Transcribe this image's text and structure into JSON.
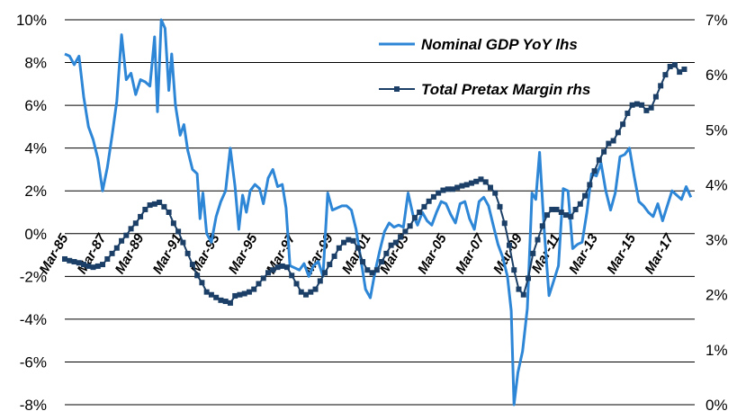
{
  "chart_data": {
    "type": "line",
    "title": "",
    "xlabel": "",
    "ylabel_left": "",
    "ylabel_right": "",
    "x_range": [
      1985.2,
      2018.5
    ],
    "x_ticks": [
      {
        "label": "Mar-85",
        "x": 1985.2
      },
      {
        "label": "Mar-87",
        "x": 1987.2
      },
      {
        "label": "Mar-89",
        "x": 1989.2
      },
      {
        "label": "Mar-91",
        "x": 1991.2
      },
      {
        "label": "Mar-93",
        "x": 1993.2
      },
      {
        "label": "Mar-95",
        "x": 1995.2
      },
      {
        "label": "Mar-97",
        "x": 1997.2
      },
      {
        "label": "Mar-99",
        "x": 1999.2
      },
      {
        "label": "Mar-01",
        "x": 2001.2
      },
      {
        "label": "Mar-03",
        "x": 2003.2
      },
      {
        "label": "Mar-05",
        "x": 2005.2
      },
      {
        "label": "Mar-07",
        "x": 2007.2
      },
      {
        "label": "Mar-09",
        "x": 2009.2
      },
      {
        "label": "Mar-11",
        "x": 2011.2
      },
      {
        "label": "Mar-13",
        "x": 2013.2
      },
      {
        "label": "Mar-15",
        "x": 2015.2
      },
      {
        "label": "Mar-17",
        "x": 2017.2
      }
    ],
    "y_left": {
      "range": [
        -8,
        10
      ],
      "ticks": [
        -8,
        -6,
        -4,
        -2,
        0,
        2,
        4,
        6,
        8,
        10
      ],
      "tick_labels": [
        "-8%",
        "-6%",
        "-4%",
        "-2%",
        "0%",
        "2%",
        "4%",
        "6%",
        "8%",
        "10%"
      ]
    },
    "y_right": {
      "range": [
        0,
        7
      ],
      "ticks": [
        0,
        1,
        2,
        3,
        4,
        5,
        6,
        7
      ],
      "tick_labels": [
        "0%",
        "1%",
        "2%",
        "3%",
        "4%",
        "5%",
        "6%",
        "7%"
      ]
    },
    "grid": "horizontal",
    "legend_position": "top-right",
    "series": [
      {
        "name": "Nominal GDP YoY lhs",
        "axis": "left",
        "color": "#2e86d6",
        "marker": "none",
        "points": [
          [
            1985.2,
            8.4
          ],
          [
            1985.45,
            8.3
          ],
          [
            1985.7,
            7.9
          ],
          [
            1985.95,
            8.3
          ],
          [
            1986.2,
            6.4
          ],
          [
            1986.45,
            5.0
          ],
          [
            1986.7,
            4.4
          ],
          [
            1986.95,
            3.5
          ],
          [
            1987.2,
            2.0
          ],
          [
            1987.45,
            3.1
          ],
          [
            1987.7,
            4.6
          ],
          [
            1987.95,
            6.2
          ],
          [
            1988.2,
            9.3
          ],
          [
            1988.45,
            7.2
          ],
          [
            1988.7,
            7.5
          ],
          [
            1988.95,
            6.5
          ],
          [
            1989.2,
            7.2
          ],
          [
            1989.45,
            7.1
          ],
          [
            1989.7,
            6.9
          ],
          [
            1989.95,
            9.2
          ],
          [
            1990.1,
            5.7
          ],
          [
            1990.3,
            10.0
          ],
          [
            1990.5,
            9.6
          ],
          [
            1990.7,
            6.7
          ],
          [
            1990.85,
            8.4
          ],
          [
            1991.05,
            6.0
          ],
          [
            1991.3,
            4.6
          ],
          [
            1991.5,
            5.1
          ],
          [
            1991.7,
            3.9
          ],
          [
            1991.95,
            3.0
          ],
          [
            1992.2,
            2.8
          ],
          [
            1992.35,
            0.7
          ],
          [
            1992.5,
            1.9
          ],
          [
            1992.7,
            0.0
          ],
          [
            1992.95,
            -0.4
          ],
          [
            1993.2,
            0.8
          ],
          [
            1993.45,
            1.5
          ],
          [
            1993.7,
            2.0
          ],
          [
            1993.95,
            4.0
          ],
          [
            1994.2,
            2.2
          ],
          [
            1994.4,
            0.2
          ],
          [
            1994.6,
            1.8
          ],
          [
            1994.8,
            1.0
          ],
          [
            1995.0,
            2.0
          ],
          [
            1995.25,
            2.3
          ],
          [
            1995.5,
            2.1
          ],
          [
            1995.7,
            1.4
          ],
          [
            1995.95,
            2.6
          ],
          [
            1996.2,
            3.0
          ],
          [
            1996.45,
            2.2
          ],
          [
            1996.7,
            2.3
          ],
          [
            1996.9,
            1.2
          ],
          [
            1997.1,
            -1.5
          ],
          [
            1997.35,
            -1.6
          ],
          [
            1997.6,
            -1.7
          ],
          [
            1997.85,
            -1.4
          ],
          [
            1998.1,
            -2.0
          ],
          [
            1998.35,
            -1.5
          ],
          [
            1998.6,
            -1.3
          ],
          [
            1998.85,
            -2.0
          ],
          [
            1999.1,
            1.9
          ],
          [
            1999.35,
            1.1
          ],
          [
            1999.6,
            1.2
          ],
          [
            1999.85,
            1.3
          ],
          [
            2000.1,
            1.3
          ],
          [
            2000.35,
            1.1
          ],
          [
            2000.6,
            0.2
          ],
          [
            2000.85,
            -1.2
          ],
          [
            2001.1,
            -2.6
          ],
          [
            2001.35,
            -3.0
          ],
          [
            2001.6,
            -1.8
          ],
          [
            2001.85,
            -0.8
          ],
          [
            2002.1,
            0.1
          ],
          [
            2002.35,
            0.5
          ],
          [
            2002.6,
            0.3
          ],
          [
            2002.85,
            0.4
          ],
          [
            2003.1,
            0.3
          ],
          [
            2003.35,
            1.9
          ],
          [
            2003.6,
            0.9
          ],
          [
            2003.85,
            0.4
          ],
          [
            2004.1,
            1.0
          ],
          [
            2004.35,
            0.6
          ],
          [
            2004.6,
            0.4
          ],
          [
            2004.85,
            1.0
          ],
          [
            2005.1,
            1.5
          ],
          [
            2005.35,
            1.4
          ],
          [
            2005.6,
            0.9
          ],
          [
            2005.85,
            0.5
          ],
          [
            2006.1,
            1.4
          ],
          [
            2006.35,
            1.5
          ],
          [
            2006.6,
            0.7
          ],
          [
            2006.85,
            0.2
          ],
          [
            2007.1,
            1.5
          ],
          [
            2007.35,
            1.7
          ],
          [
            2007.6,
            1.3
          ],
          [
            2007.85,
            0.4
          ],
          [
            2008.1,
            -0.5
          ],
          [
            2008.35,
            -1.1
          ],
          [
            2008.6,
            -2.0
          ],
          [
            2008.8,
            -3.6
          ],
          [
            2008.95,
            -8.0
          ],
          [
            2009.15,
            -6.5
          ],
          [
            2009.4,
            -5.5
          ],
          [
            2009.65,
            -3.5
          ],
          [
            2009.9,
            1.9
          ],
          [
            2010.1,
            1.6
          ],
          [
            2010.3,
            3.8
          ],
          [
            2010.55,
            0.1
          ],
          [
            2010.8,
            -2.9
          ],
          [
            2011.05,
            -2.2
          ],
          [
            2011.3,
            -1.5
          ],
          [
            2011.55,
            2.1
          ],
          [
            2011.8,
            2.0
          ],
          [
            2012.05,
            -0.7
          ],
          [
            2012.3,
            -0.5
          ],
          [
            2012.55,
            -0.4
          ],
          [
            2012.8,
            1.0
          ],
          [
            2013.05,
            2.8
          ],
          [
            2013.3,
            2.7
          ],
          [
            2013.55,
            3.3
          ],
          [
            2013.8,
            2.0
          ],
          [
            2014.05,
            1.1
          ],
          [
            2014.3,
            1.9
          ],
          [
            2014.55,
            3.6
          ],
          [
            2014.8,
            3.7
          ],
          [
            2015.05,
            4.0
          ],
          [
            2015.3,
            2.7
          ],
          [
            2015.55,
            1.5
          ],
          [
            2015.8,
            1.3
          ],
          [
            2016.05,
            1.0
          ],
          [
            2016.3,
            0.8
          ],
          [
            2016.55,
            1.4
          ],
          [
            2016.8,
            0.6
          ],
          [
            2017.05,
            1.3
          ],
          [
            2017.3,
            2.0
          ],
          [
            2017.55,
            1.8
          ],
          [
            2017.8,
            1.6
          ],
          [
            2018.05,
            2.2
          ],
          [
            2018.3,
            1.7
          ]
        ]
      },
      {
        "name": "Total Pretax Margin rhs",
        "axis": "right",
        "color": "#1b3f66",
        "marker": "square",
        "points": [
          [
            1985.2,
            2.65
          ],
          [
            1985.45,
            2.62
          ],
          [
            1985.7,
            2.6
          ],
          [
            1985.95,
            2.58
          ],
          [
            1986.2,
            2.55
          ],
          [
            1986.45,
            2.52
          ],
          [
            1986.7,
            2.5
          ],
          [
            1986.95,
            2.52
          ],
          [
            1987.2,
            2.55
          ],
          [
            1987.45,
            2.65
          ],
          [
            1987.7,
            2.75
          ],
          [
            1987.95,
            2.85
          ],
          [
            1988.2,
            2.98
          ],
          [
            1988.45,
            3.08
          ],
          [
            1988.7,
            3.2
          ],
          [
            1988.95,
            3.3
          ],
          [
            1989.2,
            3.42
          ],
          [
            1989.45,
            3.55
          ],
          [
            1989.7,
            3.63
          ],
          [
            1989.95,
            3.65
          ],
          [
            1990.2,
            3.68
          ],
          [
            1990.45,
            3.6
          ],
          [
            1990.7,
            3.5
          ],
          [
            1990.95,
            3.3
          ],
          [
            1991.2,
            3.15
          ],
          [
            1991.45,
            2.95
          ],
          [
            1991.7,
            2.75
          ],
          [
            1991.95,
            2.55
          ],
          [
            1992.2,
            2.35
          ],
          [
            1992.45,
            2.22
          ],
          [
            1992.7,
            2.05
          ],
          [
            1992.95,
            2.0
          ],
          [
            1993.2,
            1.95
          ],
          [
            1993.45,
            1.9
          ],
          [
            1993.7,
            1.88
          ],
          [
            1993.95,
            1.85
          ],
          [
            1994.2,
            1.98
          ],
          [
            1994.45,
            2.0
          ],
          [
            1994.7,
            2.02
          ],
          [
            1994.95,
            2.05
          ],
          [
            1995.2,
            2.1
          ],
          [
            1995.45,
            2.2
          ],
          [
            1995.7,
            2.3
          ],
          [
            1995.95,
            2.4
          ],
          [
            1996.2,
            2.45
          ],
          [
            1996.45,
            2.5
          ],
          [
            1996.7,
            2.52
          ],
          [
            1996.95,
            2.5
          ],
          [
            1997.2,
            2.35
          ],
          [
            1997.45,
            2.2
          ],
          [
            1997.7,
            2.05
          ],
          [
            1997.95,
            2.0
          ],
          [
            1998.2,
            2.05
          ],
          [
            1998.45,
            2.1
          ],
          [
            1998.7,
            2.25
          ],
          [
            1998.95,
            2.4
          ],
          [
            1999.2,
            2.55
          ],
          [
            1999.45,
            2.7
          ],
          [
            1999.7,
            2.85
          ],
          [
            1999.95,
            2.95
          ],
          [
            2000.2,
            3.0
          ],
          [
            2000.45,
            2.98
          ],
          [
            2000.7,
            2.85
          ],
          [
            2000.95,
            2.6
          ],
          [
            2001.2,
            2.45
          ],
          [
            2001.45,
            2.4
          ],
          [
            2001.7,
            2.45
          ],
          [
            2001.95,
            2.6
          ],
          [
            2002.2,
            2.75
          ],
          [
            2002.45,
            2.9
          ],
          [
            2002.7,
            2.95
          ],
          [
            2002.95,
            3.05
          ],
          [
            2003.2,
            3.15
          ],
          [
            2003.45,
            3.25
          ],
          [
            2003.7,
            3.4
          ],
          [
            2003.95,
            3.5
          ],
          [
            2004.2,
            3.6
          ],
          [
            2004.45,
            3.7
          ],
          [
            2004.7,
            3.78
          ],
          [
            2004.95,
            3.85
          ],
          [
            2005.2,
            3.9
          ],
          [
            2005.45,
            3.92
          ],
          [
            2005.7,
            3.92
          ],
          [
            2005.95,
            3.95
          ],
          [
            2006.2,
            3.98
          ],
          [
            2006.45,
            4.0
          ],
          [
            2006.7,
            4.03
          ],
          [
            2006.95,
            4.06
          ],
          [
            2007.2,
            4.1
          ],
          [
            2007.45,
            4.05
          ],
          [
            2007.7,
            3.95
          ],
          [
            2007.95,
            3.85
          ],
          [
            2008.2,
            3.6
          ],
          [
            2008.45,
            3.3
          ],
          [
            2008.7,
            2.9
          ],
          [
            2008.95,
            2.45
          ],
          [
            2009.2,
            2.1
          ],
          [
            2009.45,
            2.0
          ],
          [
            2009.7,
            2.3
          ],
          [
            2009.95,
            2.75
          ],
          [
            2010.2,
            3.0
          ],
          [
            2010.45,
            3.25
          ],
          [
            2010.7,
            3.45
          ],
          [
            2010.95,
            3.55
          ],
          [
            2011.2,
            3.55
          ],
          [
            2011.45,
            3.5
          ],
          [
            2011.7,
            3.45
          ],
          [
            2011.95,
            3.42
          ],
          [
            2012.2,
            3.55
          ],
          [
            2012.45,
            3.65
          ],
          [
            2012.7,
            3.8
          ],
          [
            2012.95,
            4.0
          ],
          [
            2013.2,
            4.25
          ],
          [
            2013.45,
            4.45
          ],
          [
            2013.7,
            4.6
          ],
          [
            2013.95,
            4.75
          ],
          [
            2014.2,
            4.8
          ],
          [
            2014.45,
            4.95
          ],
          [
            2014.7,
            5.1
          ],
          [
            2014.95,
            5.3
          ],
          [
            2015.2,
            5.45
          ],
          [
            2015.45,
            5.47
          ],
          [
            2015.7,
            5.45
          ],
          [
            2015.95,
            5.35
          ],
          [
            2016.2,
            5.4
          ],
          [
            2016.45,
            5.6
          ],
          [
            2016.7,
            5.8
          ],
          [
            2016.95,
            6.0
          ],
          [
            2017.2,
            6.15
          ],
          [
            2017.45,
            6.18
          ],
          [
            2017.7,
            6.05
          ],
          [
            2017.95,
            6.1
          ]
        ]
      }
    ]
  }
}
